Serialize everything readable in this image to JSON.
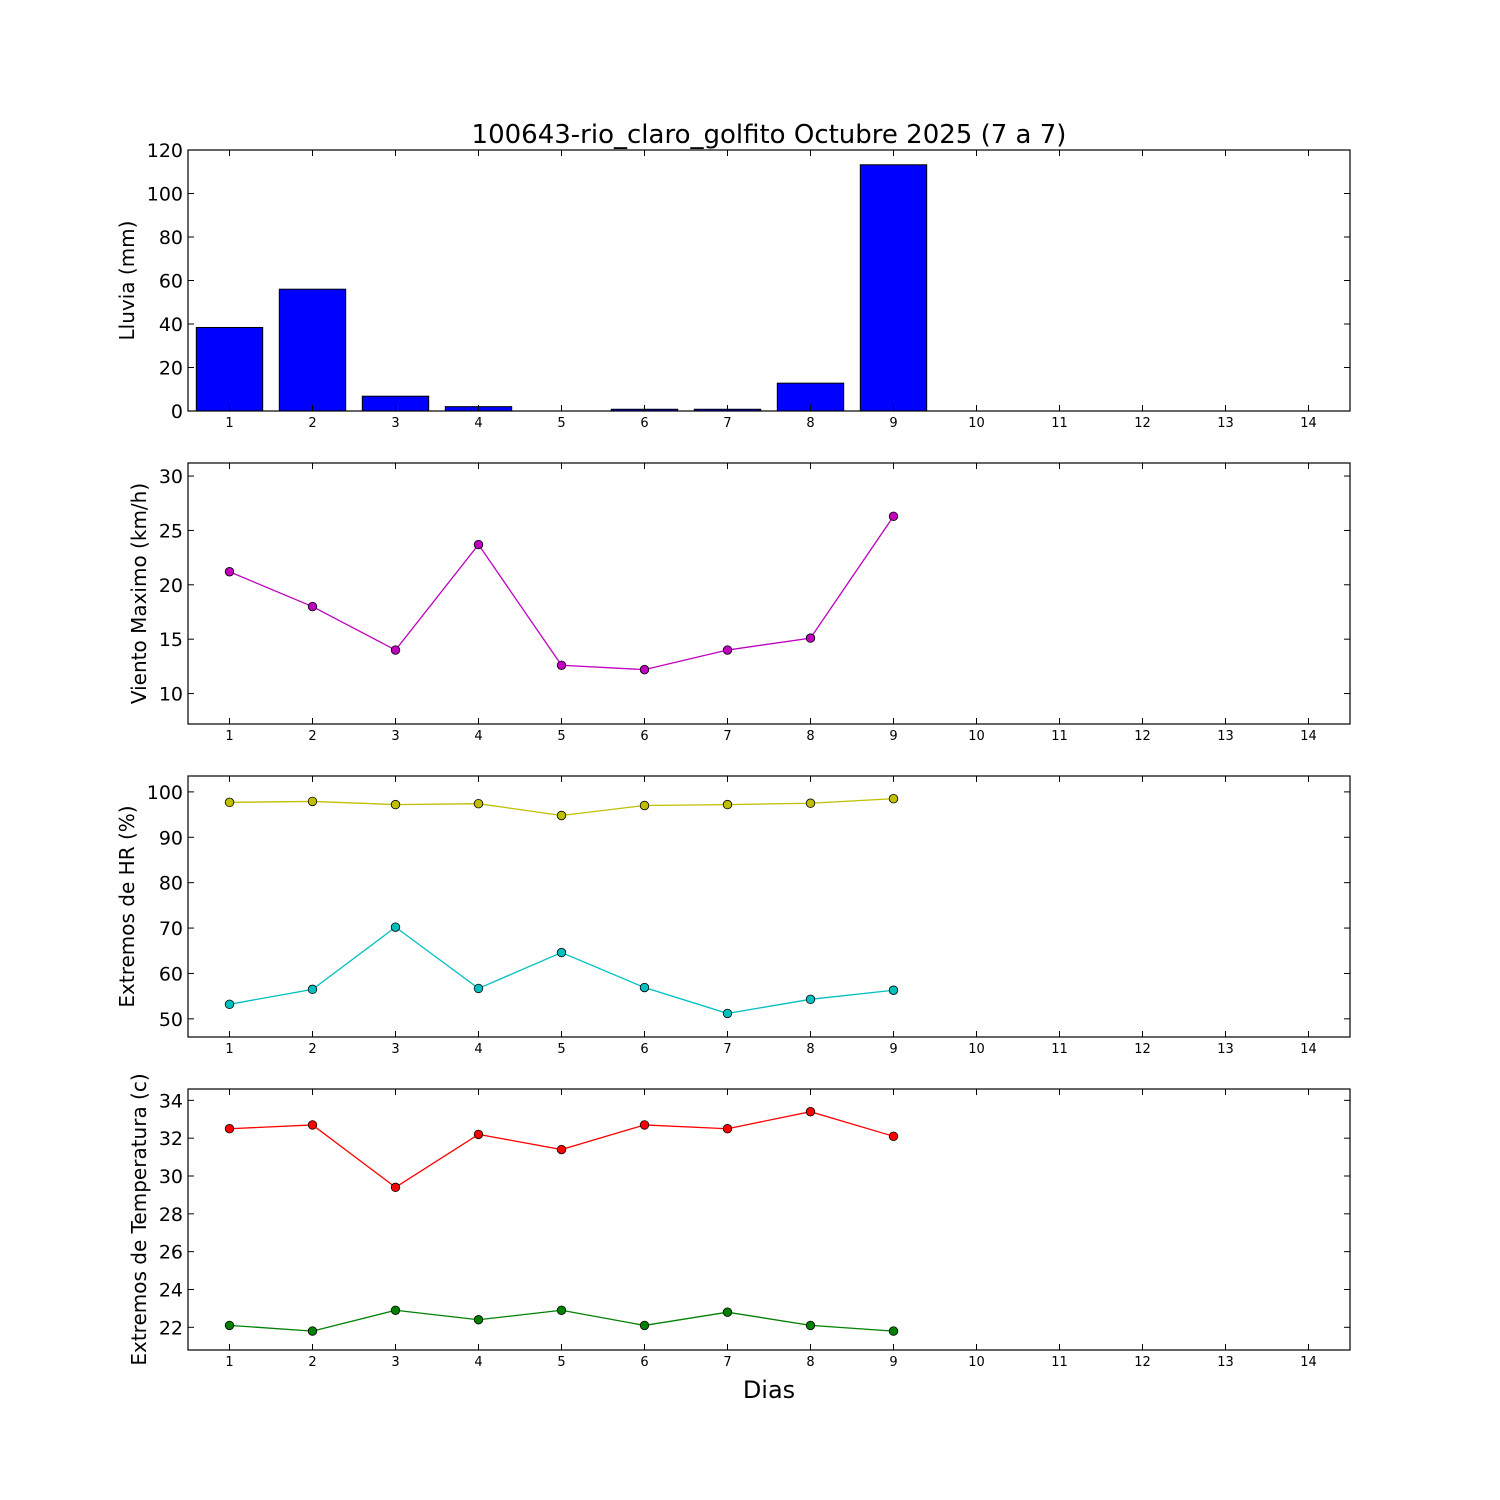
{
  "chart_data": {
    "title": "100643-rio_claro_golfito Octubre 2025  (7 a 7)",
    "xlabel": "Dias",
    "x_ticks": [
      1,
      2,
      3,
      4,
      5,
      6,
      7,
      8,
      9,
      10,
      11,
      12,
      13,
      14
    ],
    "xlim": [
      0.5,
      14.5
    ],
    "panels": [
      {
        "type": "bar",
        "ylabel": "Lluvia (mm)",
        "ylim": [
          0,
          120
        ],
        "yticks": [
          0,
          20,
          40,
          60,
          80,
          100,
          120
        ],
        "x": [
          1,
          2,
          3,
          4,
          5,
          6,
          7,
          8,
          9
        ],
        "series": [
          {
            "color": "#0000ff",
            "values": [
              38.4,
              56.0,
              6.8,
              2.0,
              0.0,
              0.8,
              0.8,
              12.8,
              113.2
            ]
          }
        ]
      },
      {
        "type": "line",
        "ylabel": "Viento Maximo (km/h)",
        "ylim": [
          7.2,
          31.2
        ],
        "yticks": [
          10,
          15,
          20,
          25,
          30
        ],
        "x": [
          1,
          2,
          3,
          4,
          5,
          6,
          7,
          8,
          9
        ],
        "series": [
          {
            "color": "#bf00bf",
            "values": [
              21.2,
              18.0,
              14.0,
              23.7,
              12.6,
              12.2,
              14.0,
              15.1,
              26.3
            ]
          }
        ]
      },
      {
        "type": "line",
        "ylabel": "Extremos de HR (%)",
        "ylim": [
          46.0,
          103.5
        ],
        "yticks": [
          50,
          60,
          70,
          80,
          90,
          100
        ],
        "x": [
          1,
          2,
          3,
          4,
          5,
          6,
          7,
          8,
          9
        ],
        "series": [
          {
            "color": "#bfbf00",
            "values": [
              97.7,
              97.9,
              97.2,
              97.4,
              94.8,
              97.0,
              97.2,
              97.5,
              98.5
            ]
          },
          {
            "color": "#00bfbf",
            "values": [
              53.2,
              56.5,
              70.2,
              56.7,
              64.6,
              56.9,
              51.2,
              54.3,
              56.3
            ]
          }
        ]
      },
      {
        "type": "line",
        "ylabel": "Extremos de Temperatura (c)",
        "ylim": [
          20.8,
          34.6
        ],
        "yticks": [
          22,
          24,
          26,
          28,
          30,
          32,
          34
        ],
        "x": [
          1,
          2,
          3,
          4,
          5,
          6,
          7,
          8,
          9
        ],
        "series": [
          {
            "color": "#ff0000",
            "values": [
              32.5,
              32.7,
              29.4,
              32.2,
              31.4,
              32.7,
              32.5,
              33.4,
              32.1
            ]
          },
          {
            "color": "#008000",
            "values": [
              22.1,
              21.8,
              22.9,
              22.4,
              22.9,
              22.1,
              22.8,
              22.1,
              21.8
            ]
          }
        ]
      }
    ]
  }
}
